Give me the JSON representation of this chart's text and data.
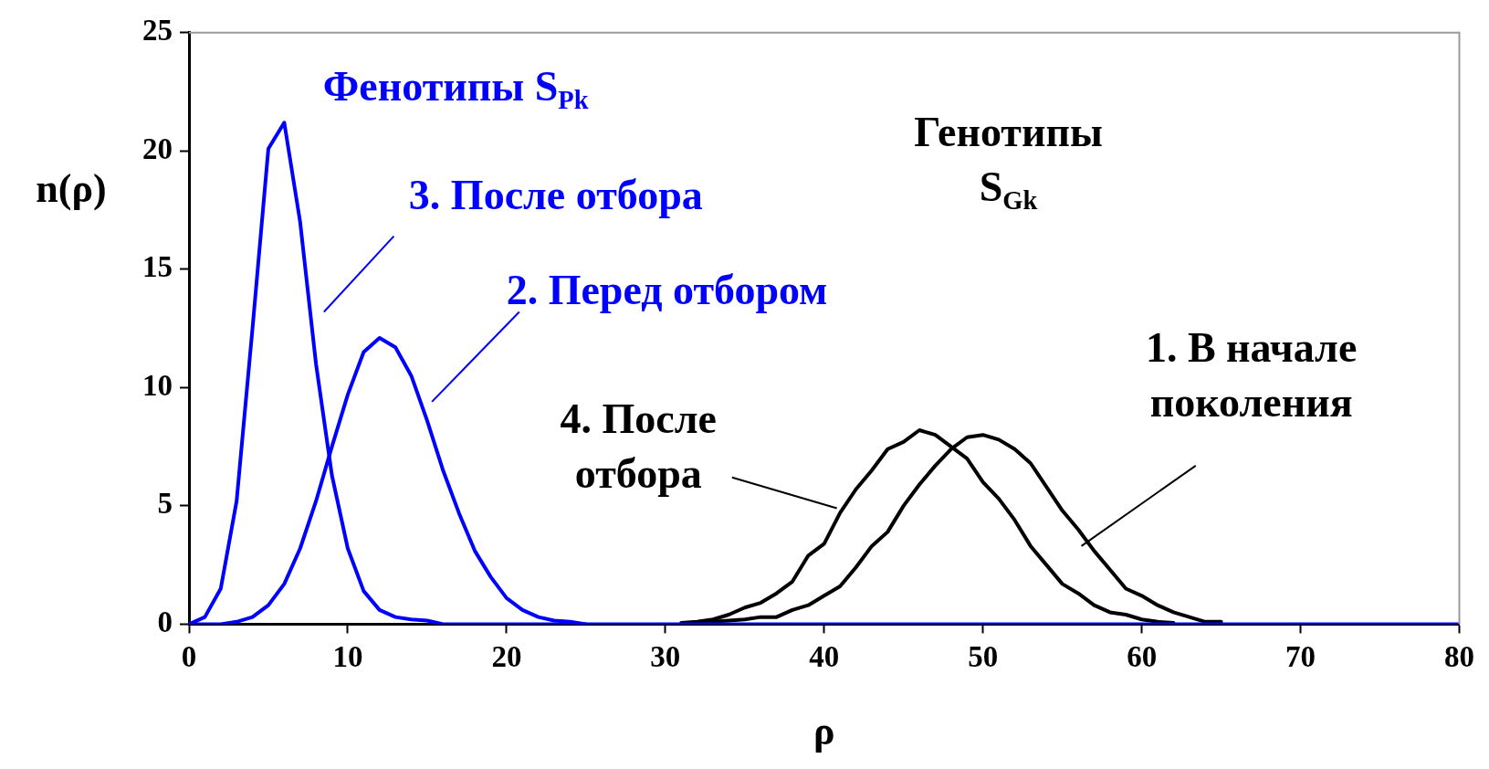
{
  "chart_data": {
    "type": "line",
    "xlabel": "ρ",
    "ylabel": "n(ρ)",
    "annotations": [
      "Фенотипы S$_{Pk}$",
      "Генотипы S$_{Gk}$"
    ],
    "x": [
      0,
      1,
      2,
      3,
      4,
      5,
      6,
      7,
      8,
      9,
      10,
      11,
      12,
      13,
      14,
      15,
      16,
      17,
      18,
      19,
      20,
      21,
      22,
      23,
      24,
      25,
      26,
      27,
      28,
      29,
      30,
      31,
      32,
      33,
      34,
      35,
      36,
      37,
      38,
      39,
      40,
      41,
      42,
      43,
      44,
      45,
      46,
      47,
      48,
      49,
      50,
      51,
      52,
      53,
      54,
      55,
      56,
      57,
      58,
      59,
      60,
      61,
      62,
      63,
      64,
      65,
      66,
      67,
      68,
      69,
      70,
      71,
      72,
      73,
      74,
      75,
      76,
      77,
      78,
      79,
      80
    ],
    "series": [
      {
        "name": "1. В начале поколения",
        "color": "#000000",
        "values": [
          null,
          null,
          null,
          null,
          null,
          null,
          null,
          null,
          null,
          null,
          null,
          null,
          null,
          null,
          null,
          null,
          null,
          null,
          null,
          null,
          null,
          null,
          null,
          null,
          null,
          null,
          null,
          null,
          null,
          null,
          null,
          null,
          0.05,
          0.1,
          0.15,
          0.2,
          0.3,
          0.3,
          0.6,
          0.8,
          1.2,
          1.6,
          2.4,
          3.3,
          3.9,
          5,
          5.9,
          6.7,
          7.4,
          7.9,
          8,
          7.8,
          7.4,
          6.8,
          5.8,
          4.8,
          4,
          3.1,
          2.3,
          1.5,
          1.2,
          0.8,
          0.5,
          0.3,
          0.1,
          0.1,
          null,
          null,
          null,
          null,
          null,
          null,
          null,
          null,
          null,
          null,
          null,
          null,
          null,
          null,
          null
        ]
      },
      {
        "name": "2. Перед отбором",
        "color": "#0000ff",
        "values": [
          0,
          0,
          0,
          0.1,
          0.3,
          0.8,
          1.7,
          3.2,
          5.2,
          7.5,
          9.7,
          11.5,
          12.1,
          11.7,
          10.5,
          8.6,
          6.5,
          4.7,
          3.1,
          2,
          1.1,
          0.6,
          0.3,
          0.15,
          0.1,
          0,
          0,
          0,
          0,
          0,
          0,
          0,
          0,
          0,
          0,
          0,
          0,
          0,
          0,
          0,
          0,
          0,
          0,
          0,
          0,
          0,
          0,
          0,
          0,
          0,
          0,
          0,
          0,
          0,
          0,
          0,
          0,
          0,
          0,
          0,
          0,
          0,
          0,
          0,
          0,
          0,
          0,
          0,
          0,
          0,
          0,
          0,
          0,
          0,
          0,
          0,
          0,
          0,
          0,
          0,
          0
        ]
      },
      {
        "name": "3. После отбора",
        "color": "#0000ff",
        "values": [
          0,
          0.3,
          1.5,
          5.2,
          12.5,
          20.1,
          21.2,
          17,
          11,
          6.3,
          3.2,
          1.4,
          0.6,
          0.3,
          0.2,
          0.15,
          0,
          0,
          0,
          0,
          0,
          0,
          0,
          0,
          0,
          0,
          null,
          null,
          null,
          null,
          null,
          null,
          null,
          null,
          null,
          null,
          null,
          null,
          null,
          null,
          null,
          null,
          null,
          null,
          null,
          null,
          null,
          null,
          null,
          null,
          null,
          null,
          null,
          null,
          null,
          null,
          null,
          null,
          null,
          null,
          null,
          null,
          null,
          null,
          null,
          null,
          null,
          null,
          null,
          null,
          null,
          null,
          null,
          null,
          null,
          null,
          null,
          null,
          null,
          null,
          null
        ]
      },
      {
        "name": "4. После отбора",
        "color": "#000000",
        "values": [
          null,
          null,
          null,
          null,
          null,
          null,
          null,
          null,
          null,
          null,
          null,
          null,
          null,
          null,
          null,
          null,
          null,
          null,
          null,
          null,
          null,
          null,
          null,
          null,
          null,
          null,
          null,
          null,
          null,
          null,
          null,
          0.05,
          0.1,
          0.2,
          0.4,
          0.7,
          0.9,
          1.3,
          1.8,
          2.9,
          3.4,
          4.7,
          5.7,
          6.5,
          7.4,
          7.7,
          8.2,
          8,
          7.5,
          7,
          6,
          5.3,
          4.4,
          3.3,
          2.5,
          1.7,
          1.3,
          0.8,
          0.5,
          0.4,
          0.2,
          0.1,
          0.05,
          null,
          null,
          null,
          null,
          null,
          null,
          null,
          null,
          null,
          null,
          null,
          null,
          null,
          null,
          null,
          null,
          null,
          null
        ]
      }
    ],
    "xlim": [
      0,
      80
    ],
    "xticks": [
      0,
      10,
      20,
      30,
      40,
      50,
      60,
      70,
      80
    ],
    "ylim": [
      0,
      25
    ],
    "yticks": [
      0,
      5,
      10,
      15,
      20,
      25
    ],
    "grid": false,
    "legend": false,
    "marker": "none",
    "line_style": "solid"
  }
}
